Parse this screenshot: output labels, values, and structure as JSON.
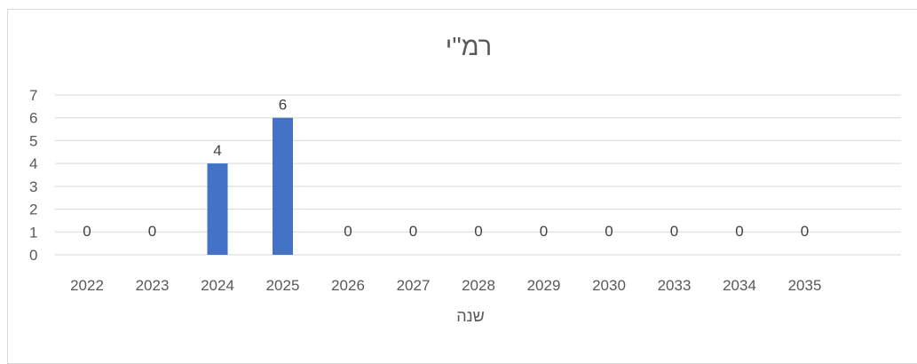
{
  "chart_data": {
    "type": "bar",
    "title": "רמ\"י",
    "xlabel": "שנה",
    "ylabel": "",
    "categories": [
      "2022",
      "2023",
      "2024",
      "2025",
      "2026",
      "2027",
      "2028",
      "2029",
      "2030",
      "2033",
      "2034",
      "2035"
    ],
    "values": [
      0,
      0,
      4,
      6,
      0,
      0,
      0,
      0,
      0,
      0,
      0,
      0
    ],
    "ylim": [
      0,
      7
    ],
    "yticks": [
      0,
      1,
      2,
      3,
      4,
      5,
      6,
      7
    ],
    "data_labels": true,
    "grid": true,
    "legend": "none",
    "bar_color": "#4472C4"
  }
}
